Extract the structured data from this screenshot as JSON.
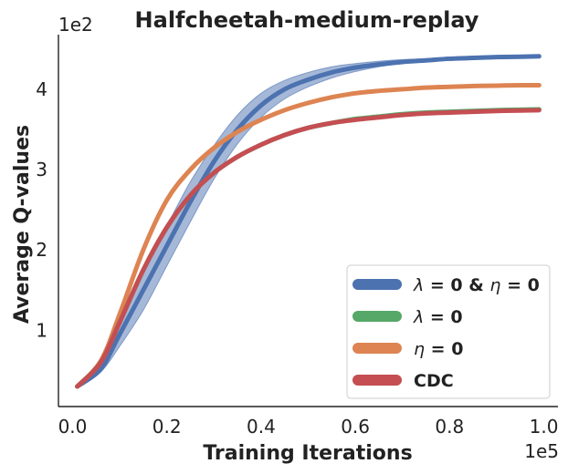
{
  "chart_data": {
    "type": "line",
    "title": "Halfcheetah-medium-replay",
    "xlabel": "Training Iterations",
    "ylabel": "Average Q-values",
    "x_offset_label": "1e5",
    "y_offset_label": "1e2",
    "xlim": [
      -0.03,
      1.03
    ],
    "ylim": [
      0.05,
      4.68
    ],
    "xticks": [
      0.0,
      0.2,
      0.4,
      0.6,
      0.8,
      1.0
    ],
    "xtick_labels": [
      "0.0",
      "0.2",
      "0.4",
      "0.6",
      "0.8",
      "1.0"
    ],
    "yticks": [
      1,
      2,
      3,
      4
    ],
    "ytick_labels": [
      "1",
      "2",
      "3",
      "4"
    ],
    "grid": false,
    "legend_position": "lower-right",
    "x": [
      0.01,
      0.06,
      0.1,
      0.15,
      0.2,
      0.25,
      0.3,
      0.35,
      0.4,
      0.45,
      0.5,
      0.55,
      0.6,
      0.65,
      0.7,
      0.75,
      0.8,
      0.85,
      0.9,
      0.95,
      0.99
    ],
    "series": [
      {
        "name": "λ = 0 & η = 0",
        "legend_parts": [
          {
            "text": "λ",
            "italic": true
          },
          {
            "text": " = 0 & ",
            "italic": false
          },
          {
            "text": "η",
            "italic": true
          },
          {
            "text": " = 0",
            "italic": false
          }
        ],
        "color": "#4c72b0",
        "values": [
          0.3,
          0.52,
          0.95,
          1.5,
          2.05,
          2.6,
          3.1,
          3.5,
          3.8,
          4.0,
          4.12,
          4.21,
          4.27,
          4.31,
          4.34,
          4.36,
          4.38,
          4.39,
          4.4,
          4.405,
          4.41
        ],
        "band_lower": [
          0.28,
          0.48,
          0.8,
          1.25,
          1.8,
          2.35,
          2.88,
          3.32,
          3.65,
          3.88,
          4.03,
          4.14,
          4.22,
          4.28,
          4.32,
          4.34,
          4.36,
          4.37,
          4.38,
          4.39,
          4.4
        ],
        "band_upper": [
          0.32,
          0.56,
          1.1,
          1.75,
          2.3,
          2.85,
          3.3,
          3.68,
          3.95,
          4.11,
          4.21,
          4.28,
          4.32,
          4.35,
          4.37,
          4.38,
          4.4,
          4.41,
          4.42,
          4.425,
          4.43
        ]
      },
      {
        "name": "λ = 0",
        "legend_parts": [
          {
            "text": "λ",
            "italic": true
          },
          {
            "text": " = 0",
            "italic": false
          }
        ],
        "color": "#55a868",
        "values": [
          0.3,
          0.6,
          1.1,
          1.75,
          2.28,
          2.68,
          2.96,
          3.16,
          3.31,
          3.43,
          3.52,
          3.58,
          3.63,
          3.66,
          3.69,
          3.71,
          3.72,
          3.73,
          3.74,
          3.745,
          3.75
        ]
      },
      {
        "name": "η = 0",
        "legend_parts": [
          {
            "text": "η",
            "italic": true
          },
          {
            "text": " = 0",
            "italic": false
          }
        ],
        "color": "#dd8452",
        "values": [
          0.3,
          0.62,
          1.2,
          2.0,
          2.62,
          3.0,
          3.27,
          3.47,
          3.62,
          3.74,
          3.83,
          3.9,
          3.95,
          3.98,
          4.0,
          4.02,
          4.03,
          4.04,
          4.045,
          4.05,
          4.05
        ]
      },
      {
        "name": "CDC",
        "legend_parts": [
          {
            "text": "CDC",
            "italic": false
          }
        ],
        "color": "#c44e52",
        "values": [
          0.3,
          0.6,
          1.1,
          1.75,
          2.28,
          2.68,
          2.96,
          3.16,
          3.31,
          3.43,
          3.52,
          3.58,
          3.62,
          3.65,
          3.68,
          3.7,
          3.71,
          3.72,
          3.73,
          3.735,
          3.74
        ]
      }
    ]
  }
}
